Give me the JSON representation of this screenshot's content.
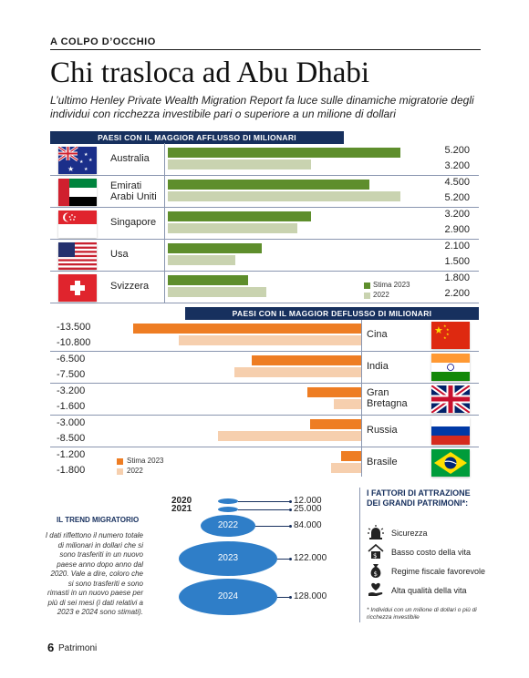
{
  "header": {
    "kicker": "A COLPO D’OCCHIO",
    "title": "Chi trasloca ad Abu Dhabi",
    "subtitle": "L’ultimo Henley Private Wealth Migration Report fa luce sulle dinamiche migratorie degli individui con ricchezza investibile pari o superiore a un milione di dollari"
  },
  "colors": {
    "inflow_2023": "#5e8e2c",
    "inflow_2022": "#c9d3b0",
    "outflow_2023": "#ee7d23",
    "outflow_2022": "#f6cfae",
    "header_band": "#17305e",
    "bubble": "#2f7ec8"
  },
  "chart_data": [
    {
      "type": "bar",
      "title": "PAESI CON IL MAGGIOR AFFLUSSO DI MILIONARI",
      "categories": [
        "Australia",
        "Emirati Arabi Uniti",
        "Singapore",
        "Usa",
        "Svizzera"
      ],
      "series": [
        {
          "name": "Stima 2023",
          "values": [
            5200,
            4500,
            3200,
            2100,
            1800
          ],
          "labels": [
            "5.200",
            "4.500",
            "3.200",
            "2.100",
            "1.800"
          ]
        },
        {
          "name": "2022",
          "values": [
            3200,
            5200,
            2900,
            1500,
            2200
          ],
          "labels": [
            "3.200",
            "5.200",
            "2.900",
            "1.500",
            "2.200"
          ]
        }
      ],
      "flags": [
        "australia-flag",
        "uae-flag",
        "singapore-flag",
        "usa-flag",
        "switzerland-flag"
      ],
      "legend_position": "bottom-right"
    },
    {
      "type": "bar",
      "title": "PAESI CON IL MAGGIOR DEFLUSSO DI MILIONARI",
      "categories": [
        "Cina",
        "India",
        "Gran Bretagna",
        "Russia",
        "Brasile"
      ],
      "series": [
        {
          "name": "Stima 2023",
          "values": [
            -13500,
            -6500,
            -3200,
            -3000,
            -1200
          ],
          "labels": [
            "-13.500",
            "-6.500",
            "-3.200",
            "-3.000",
            "-1.200"
          ]
        },
        {
          "name": "2022",
          "values": [
            -10800,
            -7500,
            -1600,
            -8500,
            -1800
          ],
          "labels": [
            "-10.800",
            "-7.500",
            "-1.600",
            "-8.500",
            "-1.800"
          ]
        }
      ],
      "flags": [
        "china-flag",
        "india-flag",
        "uk-flag",
        "russia-flag",
        "brazil-flag"
      ],
      "legend_position": "bottom-left"
    },
    {
      "type": "bubble",
      "title": "IL TREND MIGRATORIO",
      "categories": [
        "2020",
        "2021",
        "2022",
        "2023",
        "2024"
      ],
      "values": [
        12000,
        25000,
        84000,
        122000,
        128000
      ],
      "labels": [
        "12.000",
        "25.000",
        "84.000",
        "122.000",
        "128.000"
      ]
    }
  ],
  "inflow_labels": {
    "australia": "Australia",
    "uae_line1": "Emirati",
    "uae_line2": "Arabi Uniti",
    "singapore": "Singapore",
    "usa": "Usa",
    "svizzera": "Svizzera"
  },
  "outflow_labels": {
    "cina": "Cina",
    "india": "India",
    "gb_line1": "Gran",
    "gb_line2": "Bretagna",
    "russia": "Russia",
    "brasile": "Brasile"
  },
  "legend": {
    "estimate": "Stima 2023",
    "previous": "2022"
  },
  "trend": {
    "title": "IL TREND MIGRATORIO",
    "text": "I dati riflettono il numero totale di milionari in dollari che si sono trasferiti in un nuovo paese anno dopo anno dal 2020. Vale a dire, coloro che si sono trasferiti e sono rimasti in un nuovo paese per più di sei mesi (i dati relativi a 2023 e 2024 sono stimati)."
  },
  "factors": {
    "title": "I FATTORI DI ATTRAZIONE DEI GRANDI PATRIMONI*:",
    "items": [
      {
        "icon": "siren-icon",
        "label": "Sicurezza"
      },
      {
        "icon": "house-money-icon",
        "label": "Basso costo della vita"
      },
      {
        "icon": "money-bag-icon",
        "label": "Regime fiscale favorevole"
      },
      {
        "icon": "heart-hand-icon",
        "label": "Alta qualità della vita"
      }
    ],
    "note": "* Individui con un milione di dollari o più di ricchezza investibile"
  },
  "footer": {
    "page_number": "6",
    "publication": "Patrimoni"
  }
}
